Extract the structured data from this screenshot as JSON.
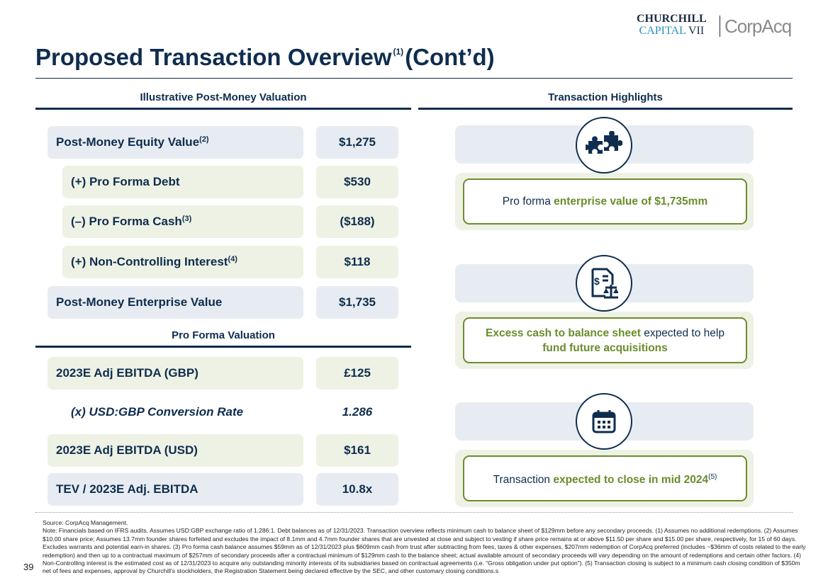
{
  "logo": {
    "line1": "CHURCHILL",
    "line2a": "CAPITAL",
    "line2b": "VII",
    "brand2": "CorpAcq"
  },
  "title": {
    "text": "Proposed Transaction Overview",
    "sup": "(1)",
    "suffix": "(Cont’d)"
  },
  "left": {
    "header": "Illustrative Post-Money Valuation",
    "rows": [
      {
        "label": "Post-Money Equity Value",
        "sup": "(2)",
        "value": "$1,275"
      },
      {
        "label": "(+) Pro Forma Debt",
        "sup": "",
        "value": "$530"
      },
      {
        "label": "(–) Pro Forma Cash",
        "sup": "(3)",
        "value": "($188)"
      },
      {
        "label": "(+) Non-Controlling Interest",
        "sup": "(4)",
        "value": "$118"
      },
      {
        "label": "Post-Money Enterprise Value",
        "sup": "",
        "value": "$1,735"
      }
    ],
    "header2": "Pro Forma Valuation",
    "rows2": [
      {
        "label": "2023E Adj EBITDA (GBP)",
        "value": "£125"
      },
      {
        "label": "(x) USD:GBP Conversion Rate",
        "value": "1.286"
      },
      {
        "label": "2023E Adj EBITDA (USD)",
        "value": "$161"
      },
      {
        "label": "TEV / 2023E Adj. EBITDA",
        "value": "10.8x"
      }
    ]
  },
  "right": {
    "header": "Transaction Highlights",
    "items": [
      {
        "icon": "puzzle-icon",
        "pre": "Pro forma ",
        "hl": "enterprise value of $1,735mm",
        "post": ""
      },
      {
        "icon": "document-scale-icon",
        "hl": "Excess cash to balance sheet",
        "post": " expected to help",
        "hl2": "fund future acquisitions"
      },
      {
        "icon": "calendar-icon",
        "pre": "Transaction ",
        "hl": "expected to close in mid 2024",
        "sup": "(5)"
      }
    ]
  },
  "footer": {
    "source": "Source: CorpAcq Management.",
    "note": "Note: Financials based on IFRS audits. Assumes USD:GBP exchange ratio of 1.286:1. Debt balances as of 12/31/2023. Transaction overview reflects minimum cash to balance sheet of $129mm before any secondary proceeds. (1) Assumes no additional redemptions. (2) Assumes $10.00 share price; Assumes 13.7mm founder shares forfeited and excludes the impact of 8.1mm and 4.7mm founder shares that are unvested at close and subject to vesting if share price remains at or above $11.50 per share and $15.00 per share, respectively, for 15 of 60 days. Excludes warrants and potential earn-in shares. (3) Pro forma cash balance assumes $59mm as of 12/31/2023 plus $609mm cash from trust after subtracting from fees, taxes & other expenses, $207mm redemption of CorpAcq preferred (includes ~$36mm of costs related to the early redemption) and then up to a contractual maximum of $257mm of secondary proceeds after a contractual minimum of $129mm cash to the balance sheet; actual available amount of secondary proceeds will vary depending on the amount of redemptions and certain other factors. (4) Non-Controlling interest is the estimated cost as of 12/31/2023 to acquire any outstanding minority interests of its subsidiaries based on contractual agreements (i.e. “Gross obligation under put option”). (5) Transaction closing is subject to a minimum cash closing condition of $350m net of fees and expenses, approval by Churchill's stockholders, the Registration Statement being declared effective by the SEC, and other customary closing conditions.s",
    "page": "39"
  }
}
